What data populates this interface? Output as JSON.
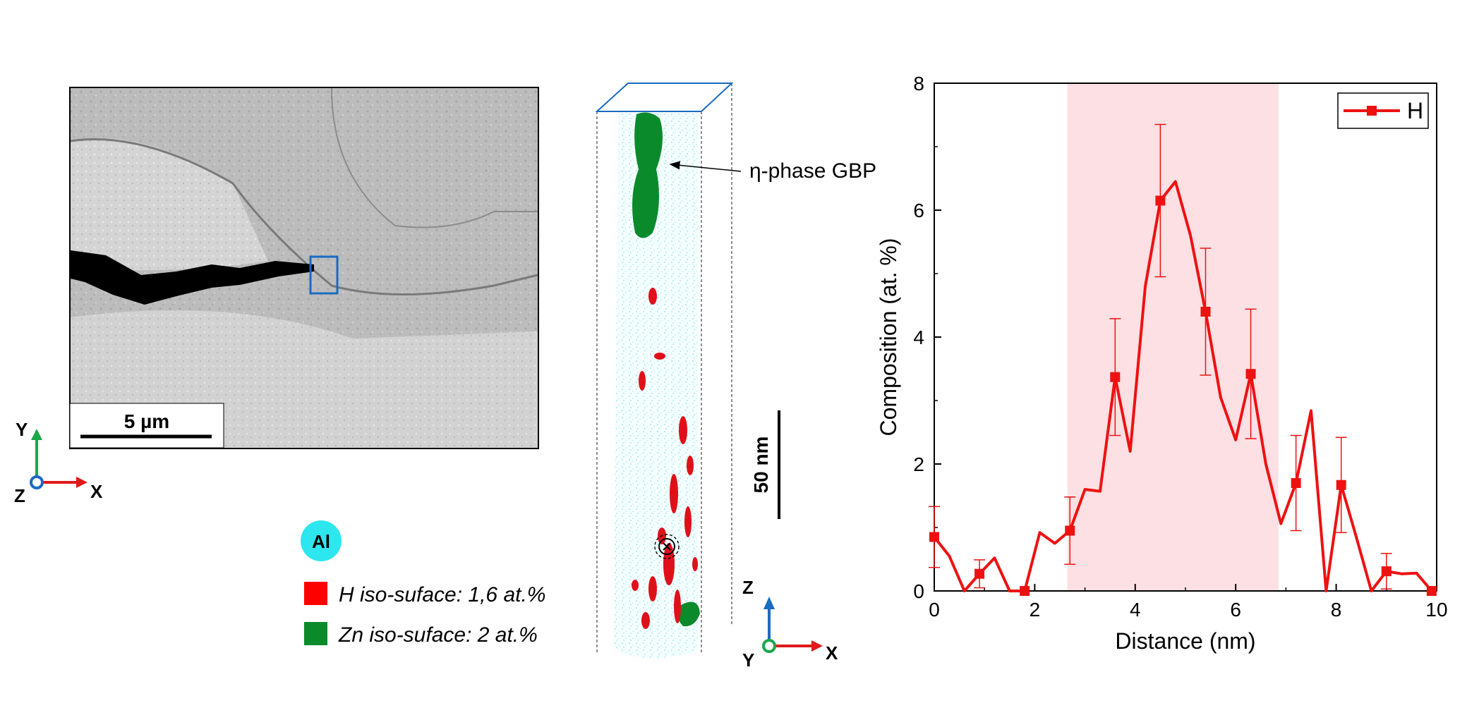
{
  "sem": {
    "scalebar_label": "5 µm",
    "axes": {
      "y": "Y",
      "z": "Z",
      "x": "X"
    }
  },
  "apt": {
    "annotation": "η-phase GBP",
    "scalebar_label": "50 nm",
    "axes": {
      "z": "Z",
      "y": "Y",
      "x": "X"
    }
  },
  "legend": {
    "al_label": "Al",
    "items": [
      {
        "label": "H iso-suface: 1,6 at.%",
        "color": "#ff0000"
      },
      {
        "label": "Zn iso-suface: 2 at.%",
        "color": "#0a8a2a"
      }
    ]
  },
  "colors": {
    "line": "#ee1111",
    "band": "#fde0e4",
    "al_dot": "#2ee6ee",
    "h_iso": "#e0101a",
    "zn_iso": "#0a8a2a",
    "box": "#1a6bc2"
  },
  "chart_data": {
    "type": "line",
    "xlabel": "Distance (nm)",
    "ylabel": "Composition (at. %)",
    "xlim": [
      0,
      10
    ],
    "ylim": [
      0,
      8
    ],
    "xticks": [
      0,
      2,
      4,
      6,
      8,
      10
    ],
    "yticks": [
      0,
      2,
      4,
      6,
      8
    ],
    "highlight_band": [
      2.65,
      6.85
    ],
    "legend": "H",
    "series": [
      {
        "name": "H",
        "x": [
          0,
          0.3,
          0.6,
          0.9,
          1.2,
          1.5,
          1.8,
          2.1,
          2.4,
          2.7,
          3.0,
          3.3,
          3.6,
          3.9,
          4.2,
          4.5,
          4.8,
          5.1,
          5.4,
          5.7,
          6.0,
          6.3,
          6.6,
          6.9,
          7.2,
          7.5,
          7.8,
          8.1,
          8.4,
          8.7,
          9.0,
          9.3,
          9.6,
          9.9
        ],
        "y": [
          0.85,
          0.55,
          0.0,
          0.27,
          0.52,
          0.0,
          0.0,
          0.92,
          0.75,
          0.95,
          1.6,
          1.57,
          3.37,
          2.2,
          4.8,
          6.15,
          6.45,
          5.6,
          4.4,
          3.05,
          2.38,
          3.42,
          2.0,
          1.06,
          1.7,
          2.84,
          0.0,
          1.67,
          0.85,
          0.0,
          0.31,
          0.27,
          0.28,
          0.0
        ],
        "markers": [
          {
            "x": 0.0,
            "y": 0.85,
            "err": 0.48
          },
          {
            "x": 0.9,
            "y": 0.27,
            "err": 0.22
          },
          {
            "x": 1.8,
            "y": 0.0,
            "err": 0.0
          },
          {
            "x": 2.7,
            "y": 0.95,
            "err": 0.53
          },
          {
            "x": 3.6,
            "y": 3.37,
            "err": 0.92
          },
          {
            "x": 4.5,
            "y": 6.15,
            "err": 1.2
          },
          {
            "x": 5.4,
            "y": 4.4,
            "err": 1.0
          },
          {
            "x": 6.3,
            "y": 3.42,
            "err": 1.02
          },
          {
            "x": 7.2,
            "y": 1.7,
            "err": 0.75
          },
          {
            "x": 8.1,
            "y": 1.67,
            "err": 0.75
          },
          {
            "x": 9.0,
            "y": 0.31,
            "err": 0.28
          },
          {
            "x": 9.9,
            "y": 0.0,
            "err": 0.0
          }
        ]
      }
    ]
  }
}
